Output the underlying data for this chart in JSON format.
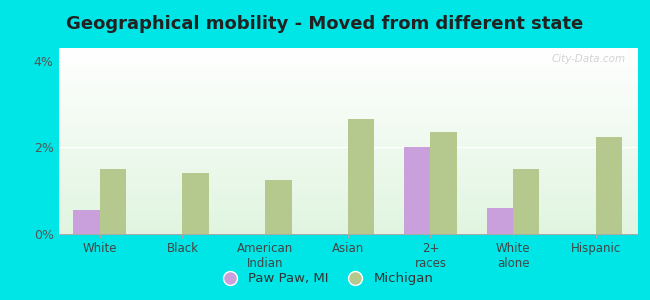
{
  "title": "Geographical mobility - Moved from different state",
  "categories": [
    "White",
    "Black",
    "American\nIndian",
    "Asian",
    "2+\nraces",
    "White\nalone",
    "Hispanic"
  ],
  "paw_paw_values": [
    0.55,
    0.0,
    0.0,
    0.0,
    2.0,
    0.6,
    0.0
  ],
  "michigan_values": [
    1.5,
    1.4,
    1.25,
    2.65,
    2.35,
    1.5,
    2.25
  ],
  "paw_paw_color": "#c9a0dc",
  "michigan_color": "#b5c98e",
  "outer_background": "#00e5e5",
  "ylim": [
    0,
    4.3
  ],
  "ytick_labels": [
    "0%",
    "2%",
    "4%"
  ],
  "ytick_vals": [
    0,
    2,
    4
  ],
  "legend_paw_paw": "Paw Paw, MI",
  "legend_michigan": "Michigan",
  "bar_width": 0.32,
  "title_fontsize": 13,
  "watermark": "City-Data.com"
}
